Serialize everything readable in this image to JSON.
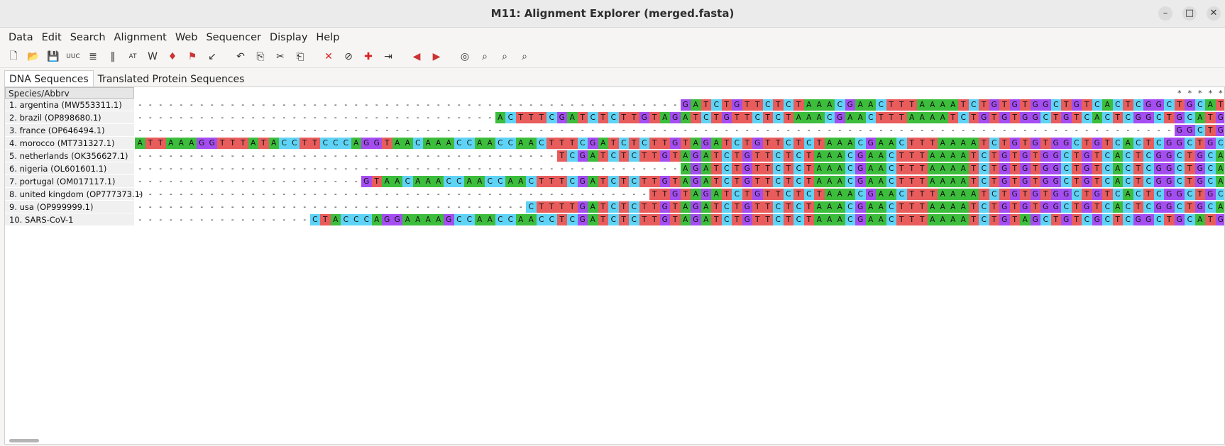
{
  "window": {
    "title": "M11: Alignment Explorer (merged.fasta)"
  },
  "menu": [
    "Data",
    "Edit",
    "Search",
    "Alignment",
    "Web",
    "Sequencer",
    "Display",
    "Help"
  ],
  "toolbar_icons": [
    "new-icon",
    "open-icon",
    "save-icon",
    "uuc-icon",
    "report-icon",
    "columns-icon",
    "atcg-icon",
    "w-icon",
    "muscle-icon",
    "flag-icon",
    "marker-icon",
    "undo-icon",
    "copy-icon",
    "cut-icon",
    "paste-icon",
    "delete-icon",
    "clear-icon",
    "add-icon",
    "import-icon",
    "prev-icon",
    "next-icon",
    "search-icon",
    "find-prev-icon",
    "find-next-icon",
    "find-marked-icon"
  ],
  "tabs": [
    "DNA Sequences",
    "Translated Protein Sequences"
  ],
  "names_header": "Species/Abbrv",
  "colors": {
    "A": "#3cbd3c",
    "C": "#5fd3f5",
    "G": "#a44df0",
    "T": "#e85c5c"
  },
  "conservation": "                                                                                                     ********** *******",
  "sequences": [
    {
      "name": "1. argentina (MW553311.1)",
      "seq": "-----------------------------------------------------GATCTGTTCTCTAAACGAACTTTAAAATCTGTGTGGCTGTCACTCGGCTGCATGCTTAGTGCA"
    },
    {
      "name": "2. brazil (OP898680.1)",
      "seq": "-----------------------------------ACTTTCGATCTCTTGTAGATCTGTTCTCTAAACGAACTTTAAAATCTGTGTGGCTGTCACTCGGCTGCATGCTTAGTGCA"
    },
    {
      "name": "3. france (OP646494.1)",
      "seq": "-----------------------------------------------------------------------------------------------------GGCTGCATGCTTAGTGCA"
    },
    {
      "name": "4. morocco (MT731327.1)",
      "seq": "ATTAAAGGTTTATACCTTCCCAGGTAACAAACCAACCAACTTTCGATCTCTTGTAGATCTGTTCTCTAAACGAACTTTAAAATCTGTGTGGCTGTCACTCGGCTGCATGCTTAGTGCA"
    },
    {
      "name": "5. netherlands (OK356627.1)",
      "seq": "-----------------------------------------TCGATCTCTTGTAGATCTGTTCTCTAAACGAACTTTAAAATCTGTGTGGCTGTCACTCGGCTGCATGCTTAGTGCA"
    },
    {
      "name": "6. nigeria (OL601601.1)",
      "seq": "-----------------------------------------------------AGATCTGTTCTCTAAACGAACTTTAAAATCTGTGTGGCTGTCACTCGGCTGCATGCTTAGTGCA"
    },
    {
      "name": "7. portugal (OM017117.1)",
      "seq": "----------------------GTAACAAACCAACCAACTTTCGATCTCTTGTAGATCTGTTCTCTAAACGAACTTTAAAATCTGTGTGGCTGTCACTCGGCTGCATGCTTAGTGCA"
    },
    {
      "name": "8. united kingdom (OP777373.1)",
      "seq": "--------------------------------------------------TTGTAGATCTGTTCTCTAAACGAACTTTAAAATCTGTGTGGCTGTCACTCGGCTGCATGCTTAGTGCA"
    },
    {
      "name": "9. usa (OP999999.1)",
      "seq": "--------------------------------------CTTTTGATCTCTTGTAGATCTGTTCTCTAAACGAACTTTAAAATCTGTGTGGCTGTCACTCGGCTGCATGCTTAGTGCA"
    },
    {
      "name": "10. SARS-CoV-1",
      "seq": "-----------------CTACCCAGGAAAAGCCAACCAACCTCGATCTCTTGTAGATCTGTTCTCTAAACGAACTTTAAAATCTGTAGCTGTCGCTCGGCTGCATGCCTAGTGCA"
    }
  ]
}
